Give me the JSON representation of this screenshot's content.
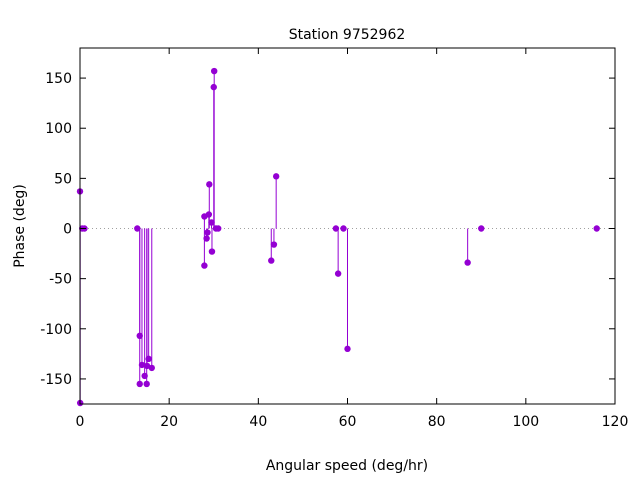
{
  "chart_data": {
    "type": "scatter",
    "style": "impulses-with-points",
    "title": "Station 9752962",
    "xlabel": "Angular speed (deg/hr)",
    "ylabel": "Phase (deg)",
    "xlim": [
      0,
      120
    ],
    "ylim": [
      -175,
      180
    ],
    "xticks": [
      0,
      20,
      40,
      60,
      80,
      100,
      120
    ],
    "yticks": [
      -150,
      -100,
      -50,
      0,
      50,
      100,
      150
    ],
    "zero_line": true,
    "grid": false,
    "color": "#9400d3",
    "points": [
      {
        "x": 0.0,
        "y": 37
      },
      {
        "x": 0.04,
        "y": -174
      },
      {
        "x": 0.5,
        "y": 0
      },
      {
        "x": 1.0,
        "y": 0
      },
      {
        "x": 12.85,
        "y": 0
      },
      {
        "x": 13.4,
        "y": -107
      },
      {
        "x": 13.4,
        "y": -155
      },
      {
        "x": 13.9,
        "y": -136
      },
      {
        "x": 14.5,
        "y": -147
      },
      {
        "x": 14.96,
        "y": -155
      },
      {
        "x": 15.04,
        "y": -137
      },
      {
        "x": 15.4,
        "y": -130
      },
      {
        "x": 16.1,
        "y": -139
      },
      {
        "x": 27.9,
        "y": -37
      },
      {
        "x": 27.9,
        "y": 12
      },
      {
        "x": 28.4,
        "y": -10
      },
      {
        "x": 28.6,
        "y": -4
      },
      {
        "x": 28.9,
        "y": 14
      },
      {
        "x": 29.0,
        "y": 44
      },
      {
        "x": 29.5,
        "y": 6
      },
      {
        "x": 29.6,
        "y": -23
      },
      {
        "x": 30.0,
        "y": 141
      },
      {
        "x": 30.1,
        "y": 157
      },
      {
        "x": 30.5,
        "y": 0
      },
      {
        "x": 31.0,
        "y": 0
      },
      {
        "x": 42.9,
        "y": -32
      },
      {
        "x": 43.5,
        "y": -16
      },
      {
        "x": 44.0,
        "y": 52
      },
      {
        "x": 57.4,
        "y": 0
      },
      {
        "x": 57.9,
        "y": -45
      },
      {
        "x": 59.1,
        "y": 0
      },
      {
        "x": 60.0,
        "y": -120
      },
      {
        "x": 86.95,
        "y": -34
      },
      {
        "x": 90.0,
        "y": 0
      },
      {
        "x": 115.9,
        "y": 0
      }
    ]
  }
}
